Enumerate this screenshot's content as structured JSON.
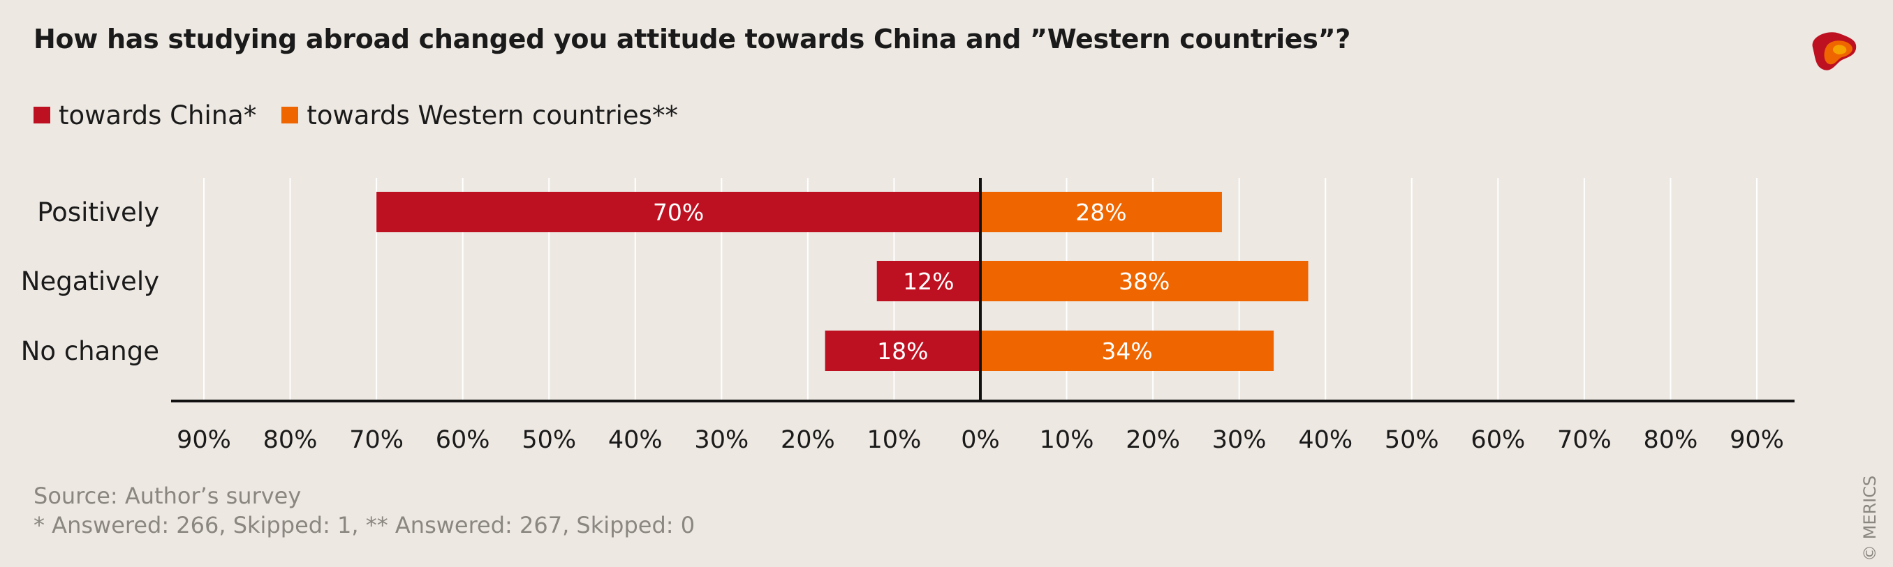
{
  "colors": {
    "background": "#ede8e2",
    "china": "#bd1121",
    "western": "#ef6500",
    "grid": "#ffffff",
    "axis": "#111111"
  },
  "logo": {
    "icon": "merics-logo-icon"
  },
  "source": {
    "line1": "Source: Author’s survey",
    "line2": "* Answered: 266, Skipped: 1, ** Answered: 267, Skipped: 0"
  },
  "copyright": "© MERICS",
  "chart_data": {
    "type": "bar",
    "orientation": "horizontal-diverging",
    "title": "How has studying abroad changed you attitude towards China and ”Western countries”?",
    "categories": [
      "Positively",
      "Negatively",
      "No change"
    ],
    "series": [
      {
        "name": "towards China*",
        "values": [
          70,
          12,
          18
        ],
        "labels": [
          "70%",
          "12%",
          "18%"
        ],
        "direction": "left"
      },
      {
        "name": "towards Western countries**",
        "values": [
          28,
          38,
          34
        ],
        "labels": [
          "28%",
          "38%",
          "34%"
        ],
        "direction": "right"
      }
    ],
    "xlim": [
      -90,
      90
    ],
    "ticks": [
      -90,
      -80,
      -70,
      -60,
      -50,
      -40,
      -30,
      -20,
      -10,
      0,
      10,
      20,
      30,
      40,
      50,
      60,
      70,
      80,
      90
    ],
    "tick_labels": [
      "90%",
      "80%",
      "70%",
      "60%",
      "50%",
      "40%",
      "30%",
      "20%",
      "10%",
      "0%",
      "10%",
      "20%",
      "30%",
      "40%",
      "50%",
      "60%",
      "70%",
      "80%",
      "90%"
    ],
    "grid": true,
    "legend_position": "top-left"
  }
}
